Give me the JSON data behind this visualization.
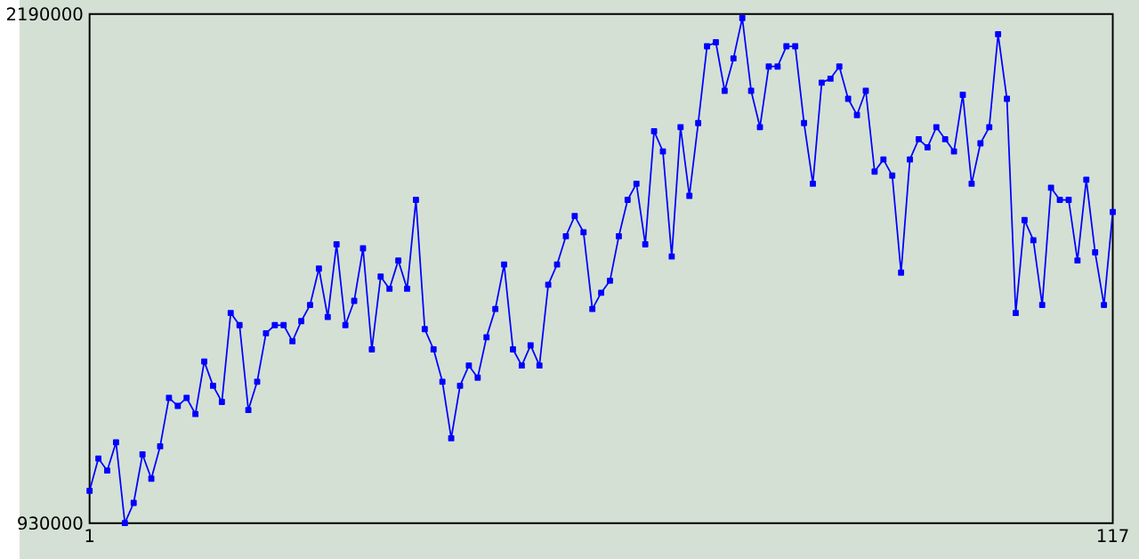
{
  "chart_data": {
    "type": "line",
    "x": [
      1,
      2,
      3,
      4,
      5,
      6,
      7,
      8,
      9,
      10,
      11,
      12,
      13,
      14,
      15,
      16,
      17,
      18,
      19,
      20,
      21,
      22,
      23,
      24,
      25,
      26,
      27,
      28,
      29,
      30,
      31,
      32,
      33,
      34,
      35,
      36,
      37,
      38,
      39,
      40,
      41,
      42,
      43,
      44,
      45,
      46,
      47,
      48,
      49,
      50,
      51,
      52,
      53,
      54,
      55,
      56,
      57,
      58,
      59,
      60,
      61,
      62,
      63,
      64,
      65,
      66,
      67,
      68,
      69,
      70,
      71,
      72,
      73,
      74,
      75,
      76,
      77,
      78,
      79,
      80,
      81,
      82,
      83,
      84,
      85,
      86,
      87,
      88,
      89,
      90,
      91,
      92,
      93,
      94,
      95,
      96,
      97,
      98,
      99,
      100,
      101,
      102,
      103,
      104,
      105,
      106,
      107,
      108,
      109,
      110,
      111,
      112,
      113,
      114,
      115,
      116,
      117
    ],
    "series": [
      {
        "color": "#0000ff",
        "values": [
          1010000,
          1090000,
          1060000,
          1130000,
          930000,
          980000,
          1100000,
          1040000,
          1120000,
          1240000,
          1220000,
          1240000,
          1200000,
          1330000,
          1270000,
          1230000,
          1450000,
          1420000,
          1210000,
          1280000,
          1400000,
          1420000,
          1420000,
          1380000,
          1430000,
          1470000,
          1560000,
          1440000,
          1620000,
          1420000,
          1480000,
          1610000,
          1360000,
          1540000,
          1510000,
          1580000,
          1510000,
          1730000,
          1410000,
          1360000,
          1280000,
          1140000,
          1270000,
          1320000,
          1290000,
          1390000,
          1460000,
          1570000,
          1360000,
          1320000,
          1370000,
          1320000,
          1520000,
          1570000,
          1640000,
          1690000,
          1650000,
          1460000,
          1500000,
          1530000,
          1640000,
          1730000,
          1770000,
          1620000,
          1900000,
          1850000,
          1590000,
          1910000,
          1740000,
          1920000,
          2110000,
          2120000,
          2000000,
          2080000,
          2180000,
          2000000,
          1910000,
          2060000,
          2060000,
          2110000,
          2110000,
          1920000,
          1770000,
          2020000,
          2030000,
          2060000,
          1980000,
          1940000,
          2000000,
          1800000,
          1830000,
          1790000,
          1550000,
          1830000,
          1880000,
          1860000,
          1910000,
          1880000,
          1850000,
          1990000,
          1770000,
          1870000,
          1910000,
          2140000,
          1980000,
          1450000,
          1680000,
          1630000,
          1470000,
          1760000,
          1730000,
          1730000,
          1580000,
          1780000,
          1600000,
          1470000,
          1700000
        ]
      }
    ],
    "xlim": [
      1,
      117
    ],
    "ylim": [
      930000,
      2190000
    ],
    "xticks": [
      1,
      117
    ],
    "yticks": [
      930000,
      2190000
    ],
    "marker": "square",
    "line_style": "solid"
  }
}
